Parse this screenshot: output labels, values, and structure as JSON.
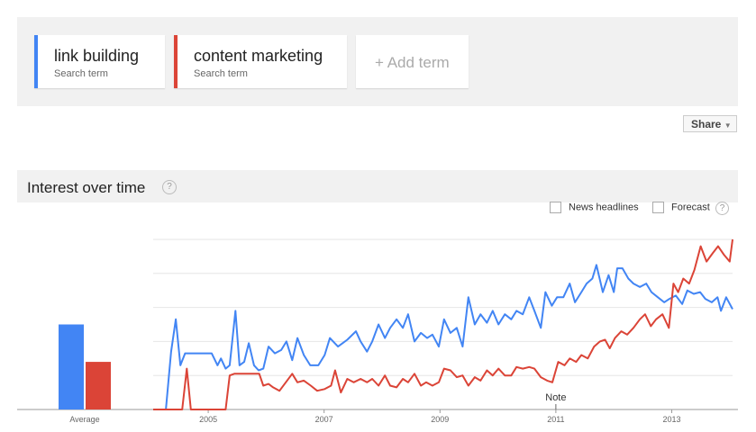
{
  "header": {
    "terms": [
      {
        "subtitle": "Search term"
      },
      {
        "subtitle": "Search term"
      }
    ],
    "add_term": "+ Add term",
    "share": "Share"
  },
  "section_title": "Interest over time",
  "section_help": "?",
  "options": [
    {
      "label": "News headlines",
      "checked": false
    },
    {
      "label": "Forecast",
      "checked": false
    }
  ],
  "forecast_help": "?",
  "chart_data": {
    "type": "line",
    "xlim": [
      2004.05,
      2014.05
    ],
    "ylim": [
      0,
      100
    ],
    "xticks": [
      2005,
      2007,
      2009,
      2011,
      2013
    ],
    "ygrid": [
      0,
      20,
      40,
      60,
      80,
      100
    ],
    "average": {
      "label": "Average",
      "values": [
        50,
        28
      ]
    },
    "annotations": [
      {
        "label": "Note",
        "x": 2011.0
      }
    ],
    "series": [
      {
        "name": "link building",
        "color": "#4285f4",
        "x": [
          2004.05,
          2004.27,
          2004.36,
          2004.44,
          2004.52,
          2004.6,
          2004.75,
          2004.91,
          2005.06,
          2005.16,
          2005.22,
          2005.3,
          2005.37,
          2005.47,
          2005.54,
          2005.62,
          2005.7,
          2005.79,
          2005.87,
          2005.95,
          2006.04,
          2006.15,
          2006.26,
          2006.35,
          2006.45,
          2006.54,
          2006.65,
          2006.76,
          2006.9,
          2007.01,
          2007.1,
          2007.24,
          2007.4,
          2007.55,
          2007.63,
          2007.74,
          2007.83,
          2007.94,
          2008.05,
          2008.14,
          2008.25,
          2008.36,
          2008.45,
          2008.56,
          2008.67,
          2008.78,
          2008.87,
          2008.98,
          2009.07,
          2009.18,
          2009.29,
          2009.39,
          2009.49,
          2009.6,
          2009.7,
          2009.81,
          2009.91,
          2010.01,
          2010.12,
          2010.23,
          2010.32,
          2010.43,
          2010.54,
          2010.63,
          2010.74,
          2010.82,
          2010.93,
          2011.02,
          2011.13,
          2011.24,
          2011.33,
          2011.44,
          2011.53,
          2011.63,
          2011.7,
          2011.81,
          2011.91,
          2012.0,
          2012.06,
          2012.15,
          2012.25,
          2012.34,
          2012.45,
          2012.56,
          2012.65,
          2012.76,
          2012.87,
          2012.96,
          2013.07,
          2013.18,
          2013.27,
          2013.38,
          2013.49,
          2013.58,
          2013.69,
          2013.79,
          2013.85,
          2013.94,
          2014.05
        ],
        "values": [
          0,
          0,
          34,
          53,
          26,
          33,
          33,
          33,
          33,
          26,
          30,
          24,
          26,
          58,
          26,
          28,
          39,
          26,
          23,
          24,
          37,
          33,
          35,
          40,
          29,
          42,
          32,
          26,
          26,
          32,
          42,
          37,
          41,
          46,
          40,
          34,
          40,
          50,
          42,
          48,
          53,
          48,
          56,
          40,
          45,
          42,
          44,
          37,
          53,
          45,
          48,
          37,
          66,
          50,
          56,
          51,
          58,
          50,
          56,
          53,
          58,
          56,
          66,
          58,
          48,
          69,
          61,
          66,
          66,
          74,
          63,
          69,
          74,
          77,
          85,
          69,
          79,
          69,
          83,
          83,
          77,
          74,
          72,
          74,
          69,
          66,
          63,
          65,
          67,
          62,
          70,
          68,
          69,
          65,
          63,
          66,
          58,
          66,
          59
        ]
      },
      {
        "name": "content marketing",
        "color": "#db4437",
        "x": [
          2004.05,
          2004.55,
          2004.63,
          2004.7,
          2005.3,
          2005.37,
          2005.45,
          2005.68,
          2005.88,
          2005.95,
          2006.04,
          2006.12,
          2006.23,
          2006.34,
          2006.45,
          2006.54,
          2006.65,
          2006.77,
          2006.88,
          2007.01,
          2007.12,
          2007.19,
          2007.29,
          2007.4,
          2007.51,
          2007.63,
          2007.74,
          2007.83,
          2007.94,
          2008.05,
          2008.14,
          2008.25,
          2008.36,
          2008.45,
          2008.56,
          2008.67,
          2008.76,
          2008.87,
          2008.98,
          2009.07,
          2009.18,
          2009.29,
          2009.39,
          2009.49,
          2009.6,
          2009.7,
          2009.81,
          2009.91,
          2010.01,
          2010.12,
          2010.23,
          2010.32,
          2010.43,
          2010.54,
          2010.63,
          2010.74,
          2010.85,
          2010.94,
          2011.04,
          2011.15,
          2011.24,
          2011.35,
          2011.44,
          2011.55,
          2011.66,
          2011.76,
          2011.85,
          2011.93,
          2012.02,
          2012.13,
          2012.23,
          2012.34,
          2012.45,
          2012.54,
          2012.64,
          2012.73,
          2012.84,
          2012.95,
          2013.03,
          2013.11,
          2013.2,
          2013.3,
          2013.39,
          2013.5,
          2013.6,
          2013.71,
          2013.8,
          2013.9,
          2014.0,
          2014.05
        ],
        "values": [
          0,
          0,
          24,
          0,
          0,
          20,
          21,
          21,
          21,
          14,
          15,
          13,
          11,
          16,
          21,
          16,
          17,
          14,
          11,
          12,
          14,
          23,
          10,
          18,
          16,
          18,
          16,
          18,
          14,
          20,
          14,
          13,
          18,
          16,
          21,
          14,
          16,
          14,
          16,
          24,
          23,
          19,
          20,
          14,
          19,
          17,
          23,
          20,
          24,
          20,
          20,
          25,
          24,
          25,
          24,
          19,
          17,
          16,
          28,
          26,
          30,
          28,
          32,
          30,
          37,
          40,
          41,
          36,
          42,
          46,
          44,
          48,
          53,
          56,
          49,
          53,
          56,
          48,
          74,
          69,
          77,
          74,
          82,
          96,
          87,
          92,
          96,
          91,
          87,
          100
        ]
      }
    ]
  }
}
